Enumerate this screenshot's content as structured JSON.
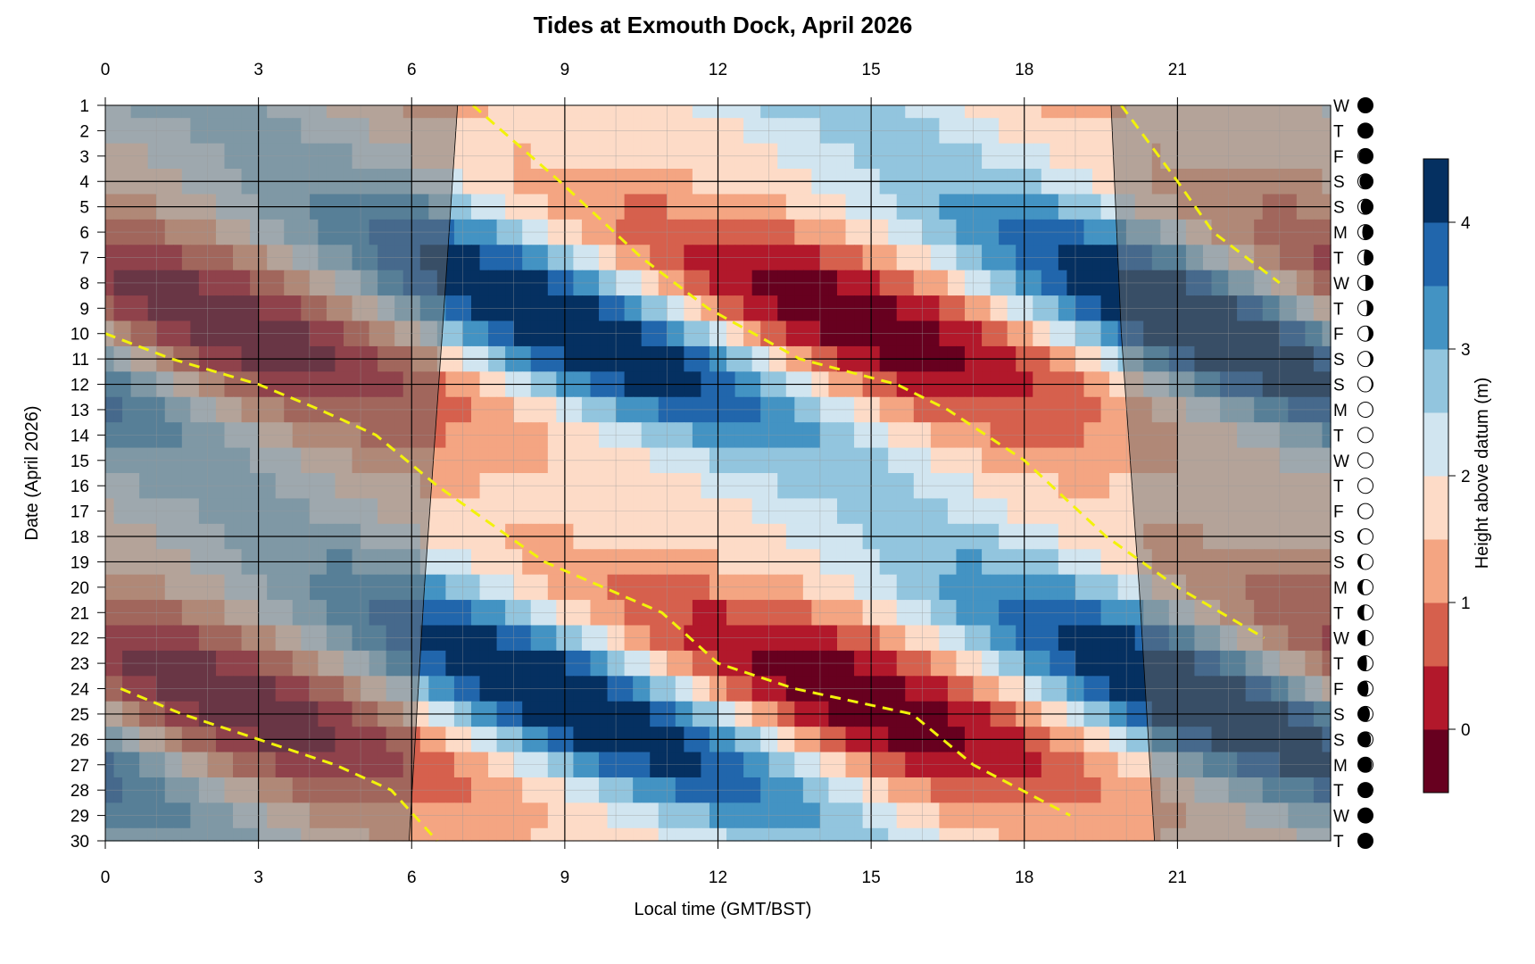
{
  "chart_data": {
    "type": "heatmap",
    "title": "Tides at Exmouth Dock, April 2026",
    "xlabel": "Local time (GMT/BST)",
    "ylabel": "Date (April 2026)",
    "colorbar_label": "Height above datum (m)",
    "xlim": [
      0,
      24
    ],
    "ylim": [
      1,
      30
    ],
    "x_ticks": [
      0,
      3,
      6,
      9,
      12,
      15,
      18,
      21
    ],
    "y_ticks": [
      1,
      2,
      3,
      4,
      5,
      6,
      7,
      8,
      9,
      10,
      11,
      12,
      13,
      14,
      15,
      16,
      17,
      18,
      19,
      20,
      21,
      22,
      23,
      24,
      25,
      26,
      27,
      28,
      29,
      30
    ],
    "colorbar_ticks": [
      0,
      1,
      2,
      3,
      4
    ],
    "color_levels": [
      -0.5,
      0,
      0.5,
      1,
      1.5,
      2,
      2.5,
      3,
      3.5,
      4,
      4.5
    ],
    "colors": [
      "#67001f",
      "#b2182b",
      "#d6604d",
      "#f4a582",
      "#fddbc7",
      "#d1e5f0",
      "#92c5de",
      "#4393c3",
      "#2166ac",
      "#053061"
    ],
    "day_of_week": [
      "W",
      "T",
      "F",
      "S",
      "S",
      "M",
      "T",
      "W",
      "T",
      "F",
      "S",
      "S",
      "M",
      "T",
      "W",
      "T",
      "F",
      "S",
      "S",
      "M",
      "T",
      "W",
      "T",
      "F",
      "S",
      "S",
      "M",
      "T",
      "W",
      "T"
    ],
    "moon_illumination": [
      0.99,
      0.98,
      0.95,
      0.89,
      0.81,
      0.71,
      0.61,
      0.5,
      0.39,
      0.28,
      0.18,
      0.1,
      0.04,
      0.01,
      0.0,
      0.02,
      0.06,
      0.12,
      0.2,
      0.3,
      0.4,
      0.5,
      0.6,
      0.7,
      0.79,
      0.87,
      0.93,
      0.97,
      0.99,
      1.0
    ],
    "moon_waxing": [
      false,
      false,
      false,
      false,
      false,
      false,
      false,
      false,
      false,
      false,
      false,
      false,
      false,
      false,
      false,
      true,
      true,
      true,
      true,
      true,
      true,
      true,
      true,
      true,
      true,
      true,
      true,
      true,
      true,
      true
    ],
    "sunrise": [
      {
        "date": 1,
        "hour": 6.9
      },
      {
        "date": 10,
        "hour": 6.6
      },
      {
        "date": 20,
        "hour": 6.25
      },
      {
        "date": 30,
        "hour": 5.95
      }
    ],
    "sunset": [
      {
        "date": 1,
        "hour": 19.7
      },
      {
        "date": 10,
        "hour": 19.9
      },
      {
        "date": 20,
        "hour": 20.25
      },
      {
        "date": 30,
        "hour": 20.55
      }
    ],
    "moon_transit_series": [
      {
        "name": "",
        "points": [
          {
            "date": 1,
            "hour": 7.2
          },
          {
            "date": 4,
            "hour": 8.9
          },
          {
            "date": 7,
            "hour": 10.5
          },
          {
            "date": 9,
            "hour": 11.8
          },
          {
            "date": 11,
            "hour": 13.6
          },
          {
            "date": 12,
            "hour": 15.5
          },
          {
            "date": 13,
            "hour": 16.5
          },
          {
            "date": 15,
            "hour": 18.0
          },
          {
            "date": 18,
            "hour": 19.6
          },
          {
            "date": 20,
            "hour": 21.0
          },
          {
            "date": 22,
            "hour": 22.7
          }
        ]
      },
      {
        "name": "",
        "points": [
          {
            "date": 10,
            "hour": 0.0
          },
          {
            "date": 11,
            "hour": 1.3
          },
          {
            "date": 12,
            "hour": 3.0
          },
          {
            "date": 13,
            "hour": 4.2
          },
          {
            "date": 14,
            "hour": 5.3
          },
          {
            "date": 16,
            "hour": 6.5
          },
          {
            "date": 19,
            "hour": 8.6
          },
          {
            "date": 21,
            "hour": 10.9
          },
          {
            "date": 23,
            "hour": 12.0
          },
          {
            "date": 24,
            "hour": 13.5
          },
          {
            "date": 25,
            "hour": 15.8
          },
          {
            "date": 27,
            "hour": 17.0
          },
          {
            "date": 29,
            "hour": 18.9
          }
        ]
      },
      {
        "name": "",
        "points": [
          {
            "date": 1,
            "hour": 19.9
          },
          {
            "date": 4,
            "hour": 21.0
          },
          {
            "date": 6,
            "hour": 21.7
          },
          {
            "date": 8,
            "hour": 23.0
          }
        ]
      },
      {
        "name": "",
        "points": [
          {
            "date": 24,
            "hour": 0.3
          },
          {
            "date": 25,
            "hour": 1.5
          },
          {
            "date": 26,
            "hour": 3.0
          },
          {
            "date": 27,
            "hour": 4.5
          },
          {
            "date": 28,
            "hour": 5.6
          },
          {
            "date": 30,
            "hour": 6.5
          }
        ]
      }
    ]
  }
}
